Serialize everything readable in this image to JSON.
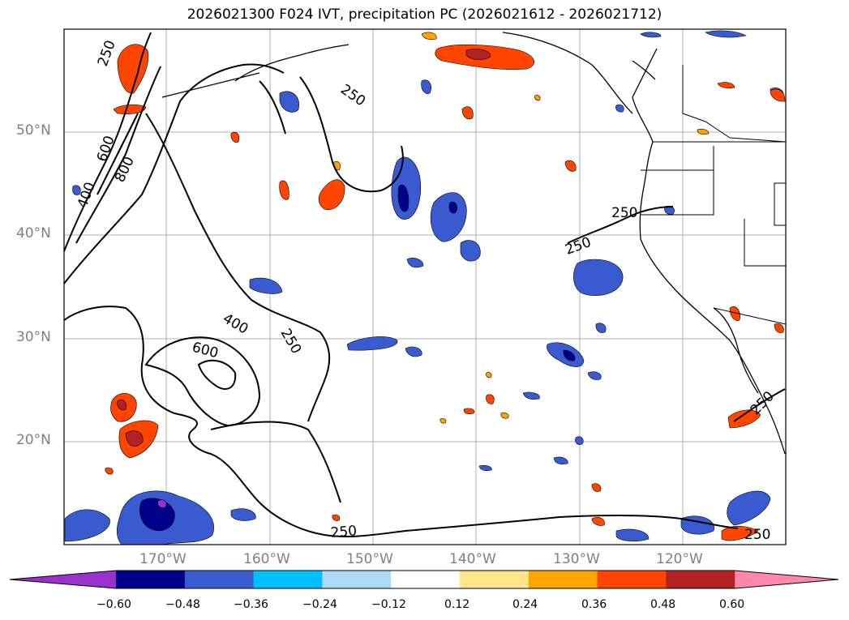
{
  "title": "2026021300 F024 IVT, precipitation PC (2026021612 - 2026021712)",
  "lat_labels": [
    "50°N",
    "40°N",
    "30°N",
    "20°N"
  ],
  "lon_labels": [
    "170°W",
    "160°W",
    "150°W",
    "140°W",
    "130°W",
    "120°W"
  ],
  "contour_labels": [
    "250",
    "250",
    "250",
    "250",
    "250",
    "250",
    "250",
    "400",
    "400",
    "600",
    "600",
    "800",
    "250"
  ],
  "colorbar": {
    "ticks": [
      "−0.60",
      "−0.48",
      "−0.36",
      "−0.24",
      "−0.12",
      "0.12",
      "0.24",
      "0.36",
      "0.48",
      "0.60"
    ],
    "colors": [
      "#9932cc",
      "#00008b",
      "#3a5bd0",
      "#00bfff",
      "#add8f6",
      "#ffffff",
      "#ffe68a",
      "#ffa500",
      "#ff4500",
      "#b22222",
      "#ff88aa"
    ]
  }
}
